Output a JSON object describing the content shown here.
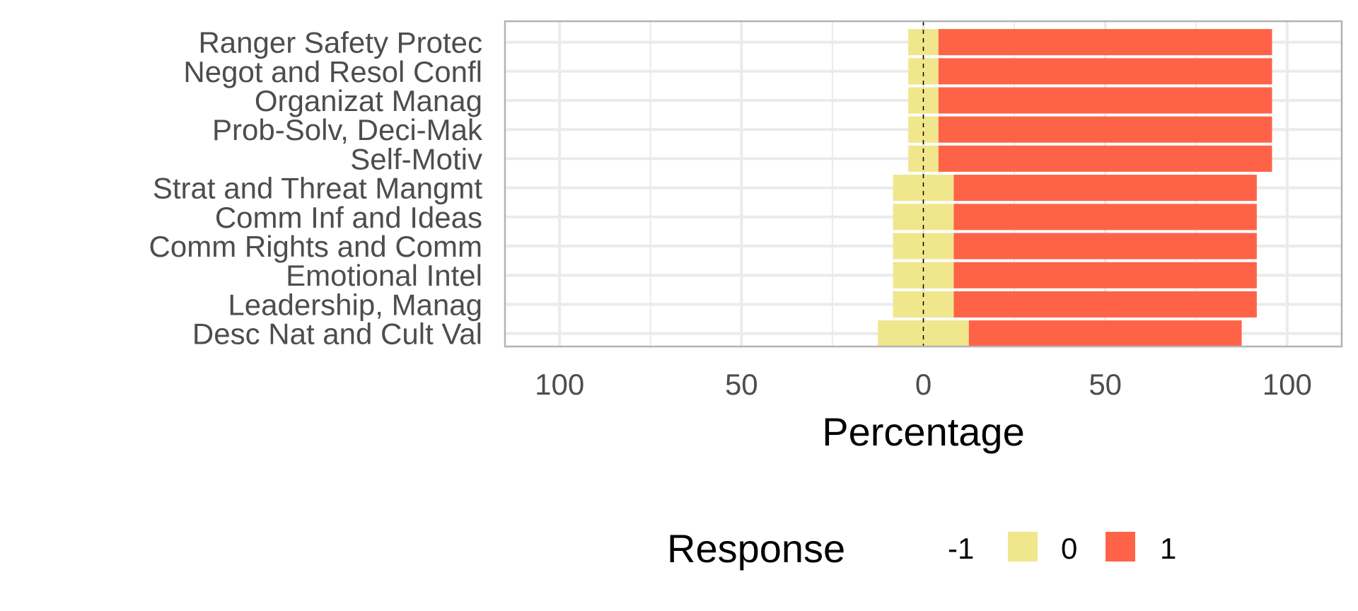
{
  "chart_data": {
    "type": "bar",
    "orientation": "horizontal",
    "stacked": "diverging",
    "categories": [
      "Ranger Safety Protec",
      "Negot and Resol Confl",
      "Organizat Manag",
      "Prob-Solv, Deci-Mak",
      "Self-Motiv",
      "Strat and Threat Mangmt",
      "Comm Inf and Ideas",
      "Comm Rights and Comm",
      "Emotional Intel",
      "Leadership, Manag",
      "Desc Nat and Cult Val"
    ],
    "series": [
      {
        "name": "-1",
        "color": "#4682b4",
        "values": [
          0,
          0,
          0,
          0,
          0,
          0,
          0,
          0,
          0,
          0,
          0
        ]
      },
      {
        "name": "0",
        "color": "#f0e68c",
        "values": [
          8.3,
          8.3,
          8.3,
          8.3,
          8.3,
          16.7,
          16.7,
          16.7,
          16.7,
          16.7,
          25
        ]
      },
      {
        "name": "1",
        "color": "#ff6347",
        "values": [
          91.7,
          91.7,
          91.7,
          91.7,
          91.7,
          83.3,
          83.3,
          83.3,
          83.3,
          83.3,
          75
        ]
      }
    ],
    "xlabel": "Percentage",
    "ylabel": "",
    "xlim": [
      -115,
      115
    ],
    "xticks": [
      -100,
      -50,
      0,
      50,
      100
    ],
    "xtick_labels": [
      "100",
      "50",
      "0",
      "50",
      "100"
    ],
    "grid": true,
    "center_line": true,
    "legend": {
      "title": "Response",
      "placement": "bottom",
      "entries": [
        "-1",
        "0",
        "1"
      ]
    }
  }
}
